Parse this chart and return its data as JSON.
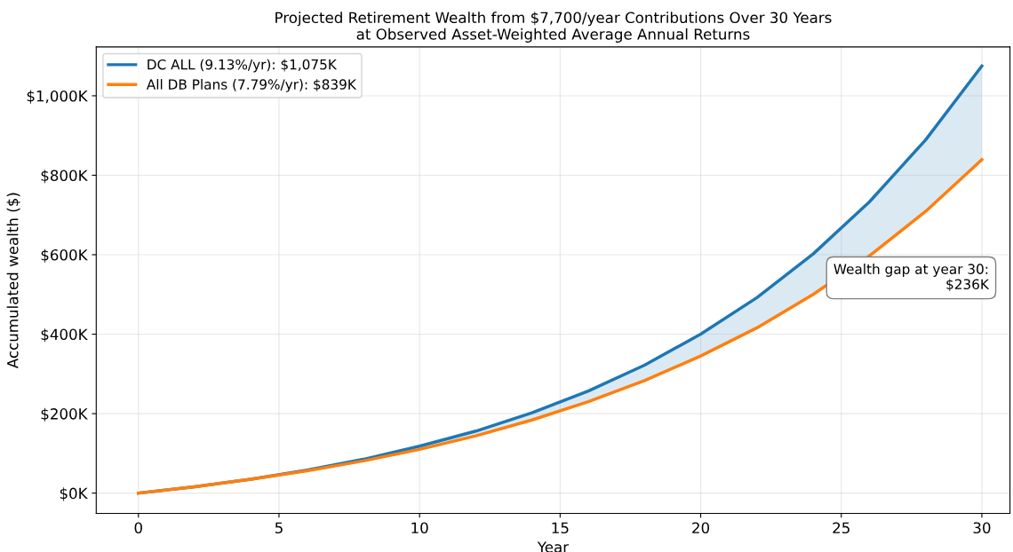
{
  "chart_data": {
    "type": "line",
    "title": "Projected Retirement Wealth from $7,700/year Contributions Over 30 Years\nat Observed Asset-Weighted Average Annual Returns",
    "xlabel": "Year",
    "ylabel": "Accumulated wealth ($)",
    "x": [
      0,
      2,
      4,
      6,
      8,
      10,
      12,
      14,
      16,
      18,
      20,
      22,
      24,
      26,
      28,
      30
    ],
    "series": [
      {
        "name": "DC ALL (9.13%/yr): $1,075K",
        "color": "#1f77b4",
        "values": [
          0,
          16,
          35,
          58,
          85,
          118,
          156,
          202,
          257,
          322,
          400,
          492,
          602,
          733,
          889,
          1075
        ],
        "lower": [
          0,
          16,
          35,
          56,
          81,
          110,
          144,
          184,
          230,
          283,
          345,
          416,
          500,
          597,
          709,
          839
        ],
        "upper": [
          0,
          16,
          35,
          58,
          85,
          118,
          156,
          202,
          257,
          322,
          400,
          492,
          602,
          733,
          889,
          1075
        ]
      },
      {
        "name": "All DB Plans (7.79%/yr): $839K",
        "color": "#ff7f0e",
        "values": [
          0,
          16,
          35,
          56,
          81,
          110,
          144,
          184,
          230,
          283,
          345,
          416,
          500,
          597,
          709,
          839
        ]
      }
    ],
    "xlim": [
      -1.5,
      31
    ],
    "xticks": [
      0,
      5,
      10,
      15,
      20,
      25,
      30
    ],
    "ylim": [
      -51,
      1123
    ],
    "yticks": [
      {
        "value": 0,
        "label": "$0K"
      },
      {
        "value": 200,
        "label": "$200K"
      },
      {
        "value": 400,
        "label": "$400K"
      },
      {
        "value": 600,
        "label": "$600K"
      },
      {
        "value": 800,
        "label": "$800K"
      },
      {
        "value": 1000,
        "label": "$1,000K"
      }
    ],
    "annotations": [
      "Wealth gap at year 30:\n$236K"
    ],
    "grid": true,
    "legend": "top left",
    "marker": "none",
    "line_style": "solid"
  }
}
